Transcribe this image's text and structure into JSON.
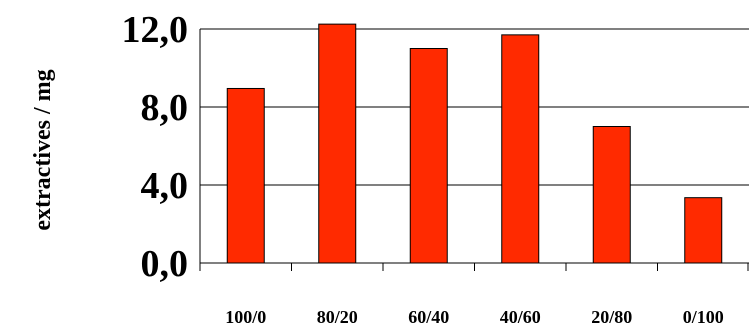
{
  "chart_data": {
    "type": "bar",
    "categories": [
      "100/0",
      "80/20",
      "60/40",
      "40/60",
      "20/80",
      "0/100"
    ],
    "values": [
      8.95,
      12.25,
      11.0,
      11.7,
      7.0,
      3.35
    ],
    "yticks": [
      "0,0",
      "4,0",
      "8,0",
      "12,0"
    ],
    "ytick_values": [
      0,
      4,
      8,
      12
    ],
    "title": "",
    "xlabel": "",
    "ylabel": "extractives / mg",
    "ylim": [
      0,
      12
    ],
    "grid": "horizontal",
    "legend": "none",
    "bar_color": "#ff2a00",
    "bar_edge_color": "#000000"
  }
}
